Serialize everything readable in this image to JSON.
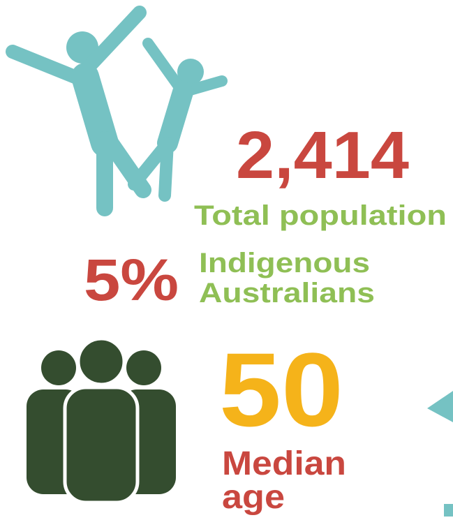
{
  "stats": [
    {
      "value": "2,414",
      "label": [
        "Total population"
      ]
    },
    {
      "value": "5%",
      "label": [
        "Indigenous",
        "Australians"
      ]
    },
    {
      "value": "50",
      "label": [
        "Median",
        "age"
      ]
    }
  ]
}
